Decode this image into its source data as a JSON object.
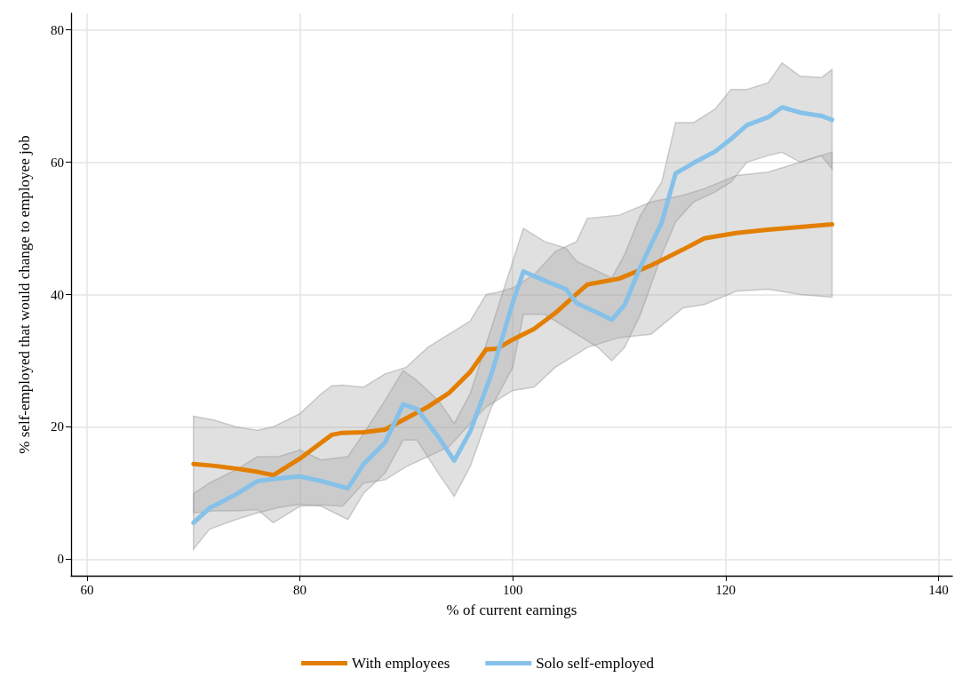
{
  "chart_data": {
    "type": "line",
    "xlabel": "% of current earnings",
    "ylabel": "% self-employed that would change to employee job",
    "xlim": [
      58.5,
      141.3
    ],
    "xticks": [
      60,
      80,
      100,
      120,
      140
    ],
    "ylim": [
      -2.5,
      82.5
    ],
    "yticks": [
      0,
      20,
      40,
      60,
      80
    ],
    "grid": true,
    "legend": "bottom",
    "marker": "none",
    "line_style": "solid",
    "series": [
      {
        "name": "With employees",
        "color": "#e37f00",
        "x": [
          70,
          72,
          74,
          76,
          77.5,
          80,
          82,
          83,
          84,
          86,
          88,
          90,
          92,
          94,
          96,
          97.5,
          98.5,
          100,
          102,
          104,
          106,
          107,
          110,
          113,
          116,
          118,
          121,
          124,
          127,
          130
        ],
        "values": [
          14.4,
          14.1,
          13.7,
          13.2,
          12.7,
          15.2,
          17.6,
          18.8,
          19.1,
          19.2,
          19.6,
          21.3,
          23,
          25.1,
          28.3,
          31.7,
          31.8,
          33.2,
          34.8,
          37.2,
          40.1,
          41.5,
          42.4,
          44.4,
          46.8,
          48.5,
          49.3,
          49.8,
          50.2,
          50.6
        ],
        "upper": [
          21.6,
          21,
          20,
          19.5,
          20,
          22,
          25,
          26.2,
          26.3,
          26,
          28,
          29,
          32,
          34,
          36,
          40,
          40.3,
          41,
          43,
          46.5,
          48,
          51.5,
          52,
          54,
          55,
          56,
          58,
          58.5,
          60,
          61.5
        ],
        "lower": [
          7,
          7.3,
          7.3,
          7.5,
          5.5,
          8,
          8.2,
          8.1,
          8,
          11.5,
          12,
          14,
          15.5,
          17,
          20.5,
          23,
          24,
          25.5,
          26,
          29,
          31,
          32,
          33.5,
          34,
          38,
          38.5,
          40.5,
          40.8,
          40,
          39.6
        ]
      },
      {
        "name": "Solo self-employed",
        "color": "#85c1e9",
        "x": [
          70,
          71.5,
          74,
          76,
          78,
          80,
          82,
          84.5,
          86,
          88,
          89.7,
          91,
          93,
          94.5,
          96,
          98,
          100,
          101,
          103,
          105,
          106,
          108,
          109.3,
          110.5,
          112,
          114,
          115.3,
          117,
          119,
          120.5,
          122,
          124,
          125.3,
          127,
          129,
          130
        ],
        "values": [
          5.5,
          7.7,
          9.8,
          11.8,
          12.2,
          12.5,
          11.8,
          10.7,
          14.4,
          17.6,
          23.4,
          22.7,
          18.5,
          14.9,
          19.3,
          28,
          38.8,
          43.5,
          42.1,
          40.8,
          38.7,
          37.2,
          36.2,
          38.4,
          44.2,
          50.9,
          58.3,
          59.9,
          61.6,
          63.5,
          65.6,
          66.8,
          68.3,
          67.5,
          67,
          66.4
        ],
        "upper": [
          9.9,
          11.5,
          13.5,
          15.5,
          15.5,
          16.5,
          15,
          15.5,
          19,
          24,
          28.5,
          27,
          24,
          20.5,
          25,
          35,
          45,
          50,
          48,
          47,
          45,
          43.5,
          42.5,
          46,
          52,
          57,
          66,
          66,
          68,
          71,
          71,
          72,
          75,
          73,
          72.8,
          74
        ],
        "lower": [
          1.5,
          4.5,
          6,
          7,
          7.8,
          8.3,
          8,
          6,
          10,
          13,
          18,
          18,
          13,
          9.5,
          14,
          23,
          29,
          37,
          37,
          35,
          34,
          32,
          30,
          32,
          37,
          46,
          51,
          54,
          55.5,
          57,
          60,
          61,
          61.5,
          60,
          61,
          59
        ]
      }
    ]
  }
}
